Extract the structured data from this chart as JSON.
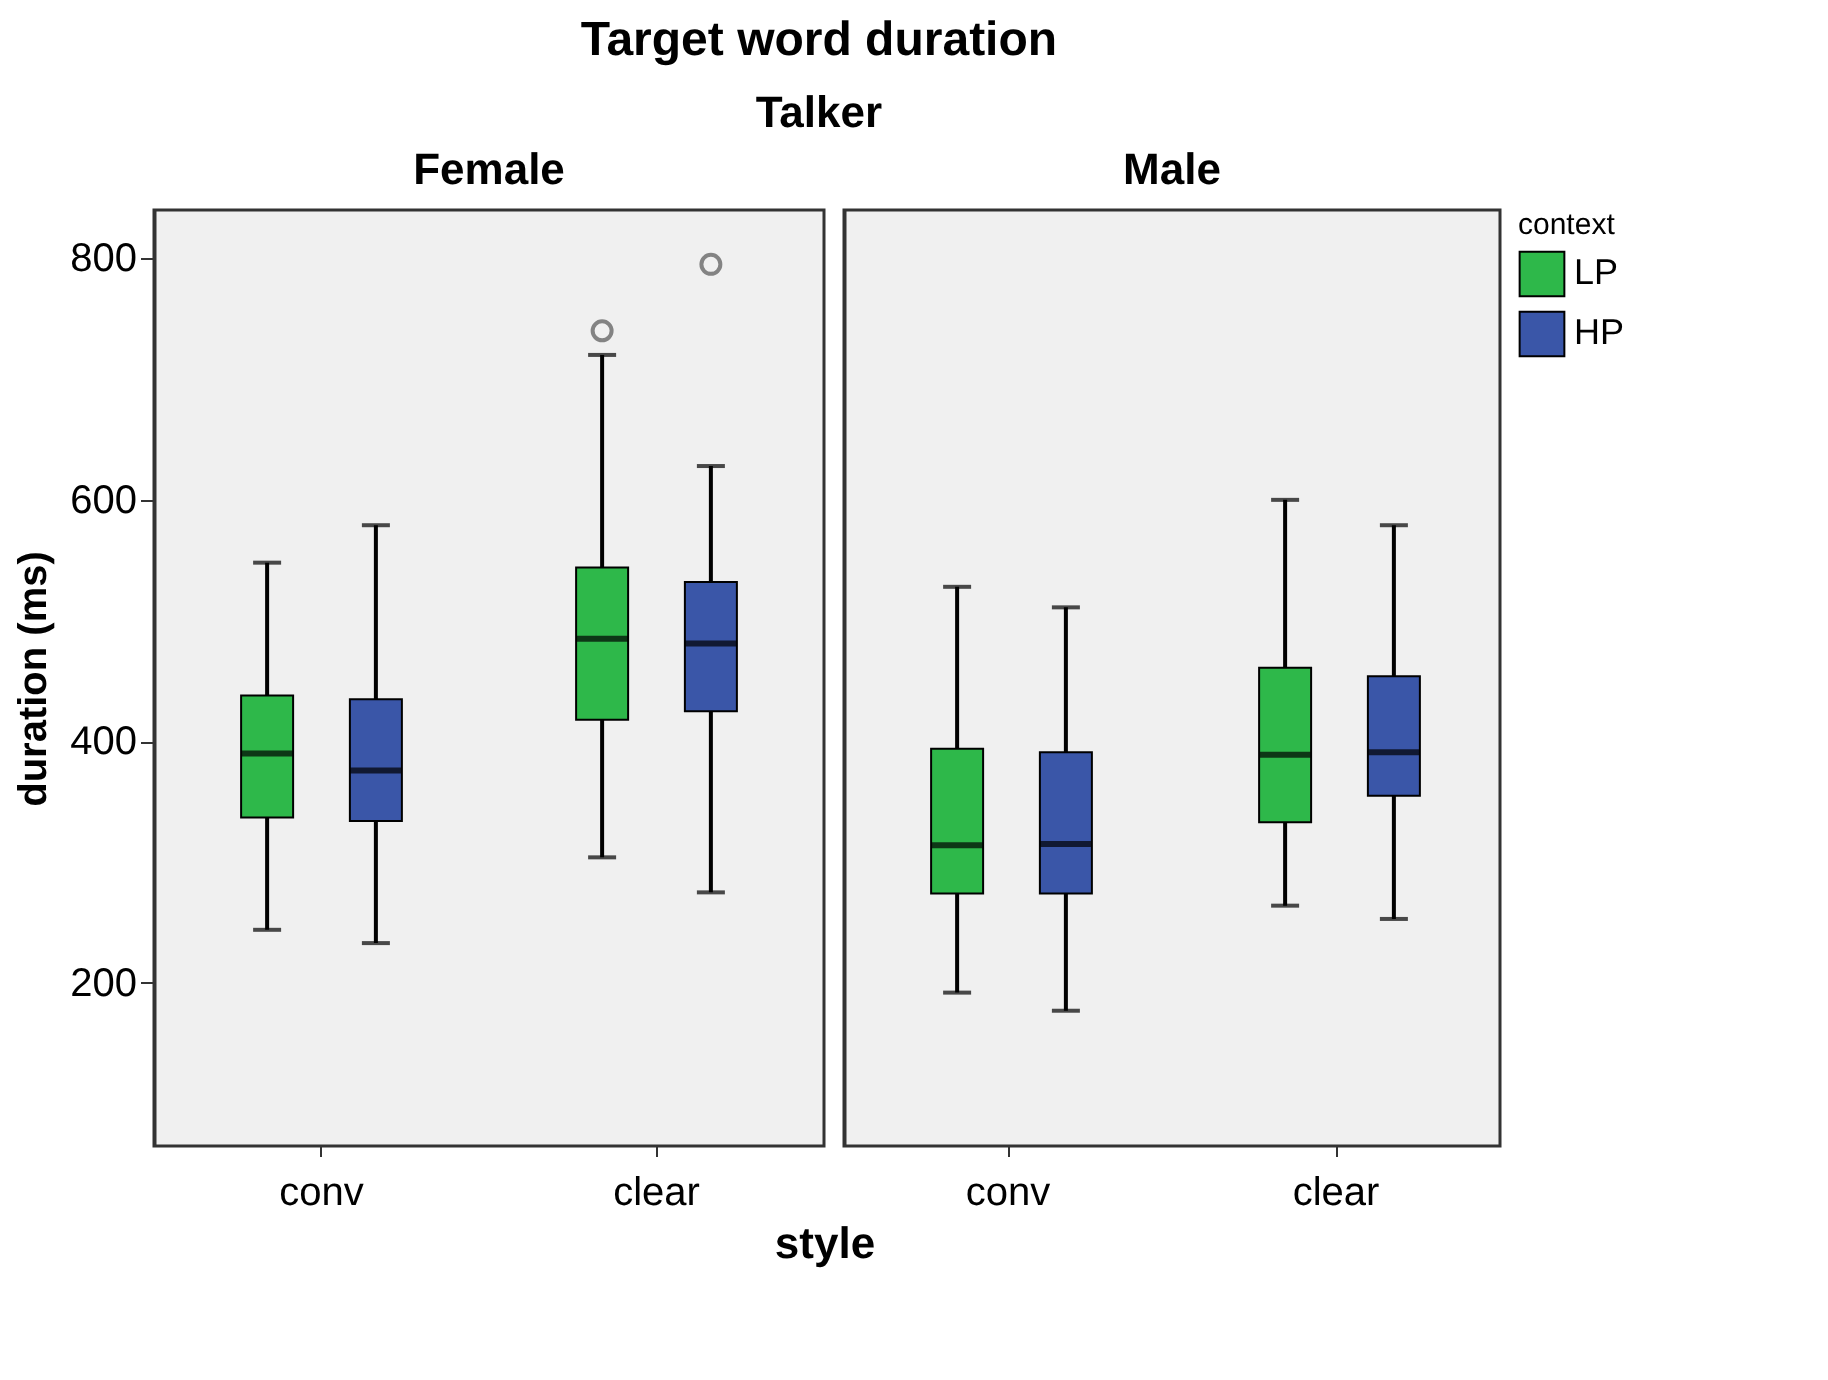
{
  "chart_data": [
    {
      "type": "box",
      "title": "Target word duration",
      "subtitle": "Talker",
      "annotations": [
        "Female"
      ],
      "xlabel": "style",
      "ylabel": "duration (ms)",
      "legend_title": "context",
      "legend": "top right",
      "grid": false,
      "categories": [
        "conv",
        "clear"
      ],
      "ylim": [
        65,
        840
      ],
      "yticks": [
        200,
        400,
        600,
        800
      ],
      "series": [
        {
          "name": "LP",
          "color": "#2eb84a",
          "boxes": [
            {
              "low": 244,
              "q1": 337,
              "median": 390,
              "q3": 438,
              "high": 548
            },
            {
              "low": 304,
              "q1": 418,
              "median": 485,
              "q3": 544,
              "high": 720,
              "outliers": [
                740
              ]
            }
          ]
        },
        {
          "name": "HP",
          "color": "#3a56a8",
          "boxes": [
            {
              "low": 233,
              "q1": 334,
              "median": 376,
              "q3": 435,
              "high": 579
            },
            {
              "low": 275,
              "q1": 425,
              "median": 481,
              "q3": 532,
              "high": 628,
              "outliers": [
                795
              ]
            }
          ]
        }
      ]
    },
    {
      "type": "box",
      "annotations": [
        "Male"
      ],
      "tick_labels": "x",
      "grid": false,
      "categories": [
        "conv",
        "clear"
      ],
      "ylim": [
        65,
        840
      ],
      "yticks": [
        200,
        400,
        600,
        800
      ],
      "series": [
        {
          "name": "LP",
          "color": "#2eb84a",
          "boxes": [
            {
              "low": 192,
              "q1": 274,
              "median": 314,
              "q3": 394,
              "high": 528
            },
            {
              "low": 264,
              "q1": 333,
              "median": 389,
              "q3": 461,
              "high": 600
            }
          ]
        },
        {
          "name": "HP",
          "color": "#3a56a8",
          "boxes": [
            {
              "low": 177,
              "q1": 274,
              "median": 315,
              "q3": 391,
              "high": 511
            },
            {
              "low": 253,
              "q1": 355,
              "median": 391,
              "q3": 454,
              "high": 579
            }
          ]
        }
      ]
    }
  ]
}
